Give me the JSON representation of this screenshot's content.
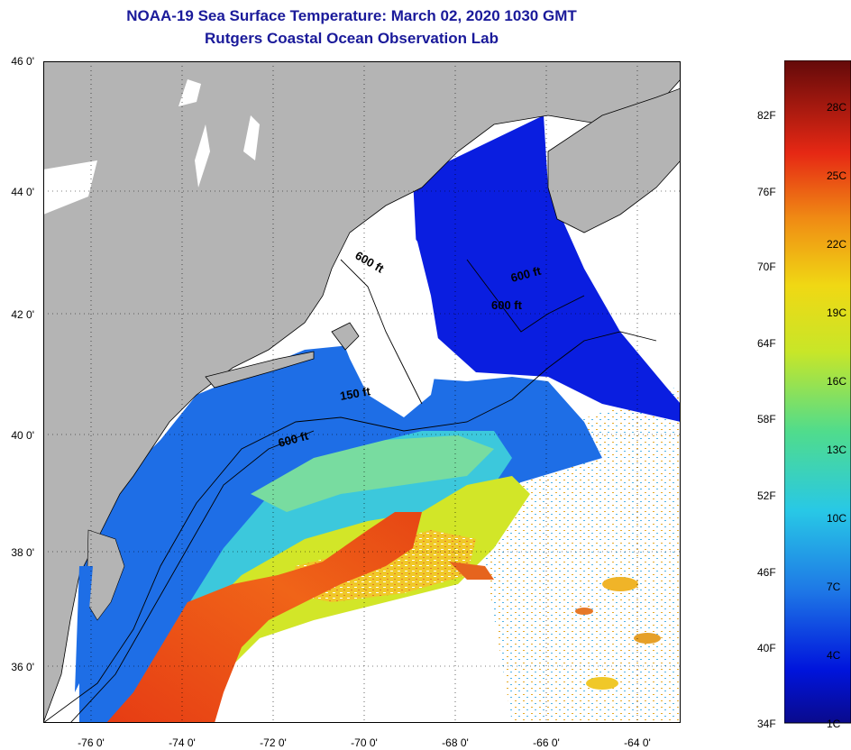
{
  "header": {
    "title": "NOAA-19 Sea Surface Temperature:  March 02, 2020 1030 GMT",
    "subtitle": "Rutgers Coastal Ocean Observation Lab"
  },
  "map": {
    "lat_labels": [
      "46 0'",
      "44 0'",
      "42 0'",
      "40 0'",
      "38 0'",
      "36 0'"
    ],
    "lon_labels": [
      "-76 0'",
      "-74 0'",
      "-72 0'",
      "-70 0'",
      "-68 0'",
      "-66 0'",
      "-64 0'"
    ],
    "lat_range": [
      35.0,
      46.0
    ],
    "lon_range": [
      -77.0,
      -63.0
    ],
    "contours": {
      "gulf_maine_600": "600 ft",
      "georges_600": "600 ft",
      "scotian_600": "600 ft",
      "georges_150": "150 ft",
      "shelf_600": "600 ft"
    },
    "colors": {
      "land": "#b4b4b4",
      "cloud": "#ffffff",
      "cold": "#0a1ee0",
      "shelf": "#1e6ee6",
      "slope": "#3cc8dc",
      "warm": "#e6e632",
      "gulfstream": "#e63c14"
    }
  },
  "colorbar": {
    "fahrenheit_labels": [
      "82F",
      "76F",
      "70F",
      "64F",
      "58F",
      "52F",
      "46F",
      "40F",
      "34F"
    ],
    "celsius_labels": [
      "28C",
      "25C",
      "22C",
      "19C",
      "16C",
      "13C",
      "10C",
      "7C",
      "4C",
      "1C"
    ]
  }
}
